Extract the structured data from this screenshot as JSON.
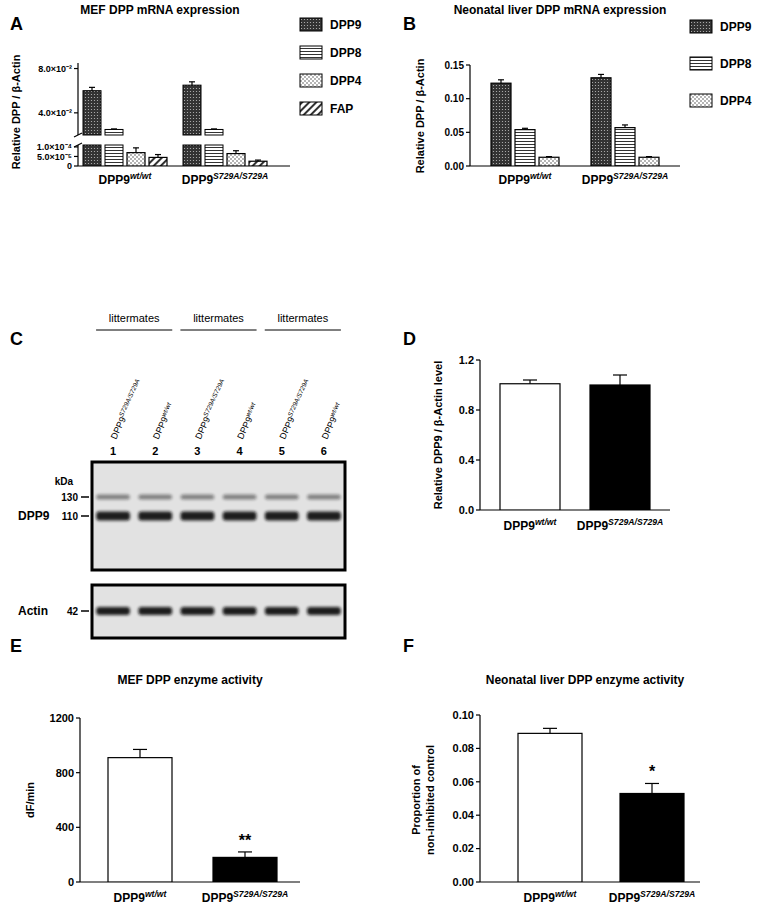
{
  "chart_data": [
    {
      "panel": "A",
      "type": "bar",
      "title": "MEF DPP mRNA expression",
      "y_label": "Relative DPP / β-Actin",
      "categories": [
        "DPP9wt/wt",
        "DPP9S729A/S729A"
      ],
      "series": [
        {
          "name": "DPP9",
          "color": "#333333",
          "values": [
            0.06,
            0.065
          ],
          "errors": [
            0.003,
            0.003
          ]
        },
        {
          "name": "DPP8",
          "color": "#333333",
          "values": [
            0.025,
            0.025
          ],
          "errors": [
            0.0005,
            0.0005
          ]
        },
        {
          "name": "DPP4",
          "color": "#333333",
          "values": [
            7e-05,
            6.5e-05
          ],
          "errors": [
            2.5e-05,
            1.5e-05
          ]
        },
        {
          "name": "FAP",
          "color": "#333333",
          "values": [
            4.5e-05,
            2.5e-05
          ],
          "errors": [
            1.5e-05,
            6e-06
          ]
        }
      ],
      "ylim": [
        0,
        0.085
      ],
      "yticks": [
        0,
        {
          "value": 5e-05,
          "label": "5.0×10⁻⁵"
        },
        {
          "value": 0.0001,
          "label": "1.0×10⁻⁴"
        },
        {
          "value": 0.04,
          "label": "4.0×10⁻²"
        },
        {
          "value": 0.08,
          "label": "8.0×10⁻²"
        }
      ],
      "break": [
        0.00011,
        0.02
      ],
      "legend": "right"
    },
    {
      "panel": "B",
      "type": "bar",
      "title": "Neonatal liver DPP mRNA expression",
      "y_label": "Relative DPP / β-Actin",
      "categories": [
        "DPP9wt/wt",
        "DPP9S729A/S729A"
      ],
      "series": [
        {
          "name": "DPP9",
          "color": "#333333",
          "values": [
            0.123,
            0.131
          ],
          "errors": [
            0.005,
            0.005
          ]
        },
        {
          "name": "DPP8",
          "color": "#333333",
          "values": [
            0.054,
            0.057
          ],
          "errors": [
            0.002,
            0.004
          ]
        },
        {
          "name": "DPP4",
          "color": "#333333",
          "values": [
            0.013,
            0.013
          ],
          "errors": [
            0.001,
            0.001
          ]
        }
      ],
      "ylim": [
        0,
        0.15
      ],
      "yticks": [
        {
          "value": 0,
          "label": "0.00"
        },
        0.05,
        {
          "value": 0.1,
          "label": "0.10"
        },
        0.15
      ],
      "legend": "right"
    },
    {
      "panel": "D",
      "type": "bar",
      "y_label": "Relative DPP9 / β-Actin level",
      "categories": [
        "DPP9wt/wt",
        "DPP9S729A/S729A"
      ],
      "values": [
        1.01,
        1.0
      ],
      "errors": [
        0.03,
        0.08
      ],
      "colors": [
        "#ffffff",
        "#000000"
      ],
      "ylim": [
        0,
        1.2
      ],
      "yticks": [
        {
          "value": 0,
          "label": "0.0"
        },
        0.4,
        0.8,
        1.2
      ]
    },
    {
      "panel": "E",
      "type": "bar",
      "title": "MEF DPP enzyme activity",
      "y_label": "dF/min",
      "categories": [
        "DPP9wt/wt",
        "DPP9S729A/S729A"
      ],
      "values": [
        910,
        180
      ],
      "errors": [
        60,
        40
      ],
      "colors": [
        "#ffffff",
        "#000000"
      ],
      "ylim": [
        0,
        1200
      ],
      "yticks": [
        0,
        400,
        800,
        1200
      ],
      "annotations": [
        {
          "text": "**",
          "index": 1
        }
      ]
    },
    {
      "panel": "F",
      "type": "bar",
      "title": "Neonatal liver DPP enzyme activity",
      "y_label": [
        "Proportion of",
        "non-inhibited control"
      ],
      "categories": [
        "DPP9wt/wt",
        "DPP9S729A/S729A"
      ],
      "values": [
        0.089,
        0.053
      ],
      "errors": [
        0.003,
        0.006
      ],
      "colors": [
        "#ffffff",
        "#000000"
      ],
      "ylim": [
        0,
        0.1
      ],
      "yticks": [
        {
          "value": 0,
          "label": "0.00"
        },
        0.02,
        0.04,
        0.06,
        0.08,
        {
          "value": 0.1,
          "label": "0.10"
        }
      ],
      "annotations": [
        {
          "text": "*",
          "index": 1
        }
      ]
    }
  ],
  "blot": {
    "panel": "C",
    "groups": [
      "littermates",
      "littermates",
      "littermates"
    ],
    "lanes": [
      {
        "number": 1,
        "label": "DPP9S729A/S729A"
      },
      {
        "number": 2,
        "label": "DPP9wt/wt"
      },
      {
        "number": 3,
        "label": "DPP9S729A/S729A"
      },
      {
        "number": 4,
        "label": "DPP9wt/wt"
      },
      {
        "number": 5,
        "label": "DPP9S729A/S729A"
      },
      {
        "number": 6,
        "label": "DPP9wt/wt"
      }
    ],
    "size_unit": "kDa",
    "blots": [
      {
        "name": "DPP9",
        "markers": [
          130,
          110
        ]
      },
      {
        "name": "Actin",
        "markers": [
          42
        ]
      }
    ]
  }
}
